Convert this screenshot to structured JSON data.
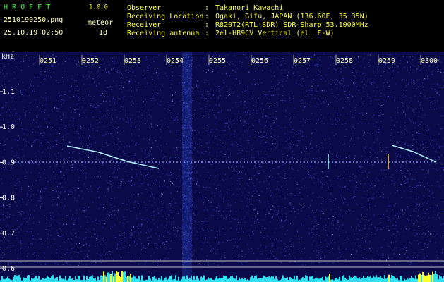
{
  "header": {
    "app": "H R O F F T",
    "version": "1.0.0",
    "file": "2510190250.png",
    "meteor_label": "meteor",
    "datetime": "25.10.19 02:50",
    "meteor_count": "18"
  },
  "separator": ":",
  "info": [
    {
      "label": "Observer",
      "value": "Takanori Kawachi"
    },
    {
      "label": "Receiving Location",
      "value": "Ogaki, Gifu, JAPAN (136.60E, 35.35N)"
    },
    {
      "label": "Receiver",
      "value": "R820T2(RTL-SDR) SDR-Sharp 53.1000MHz"
    },
    {
      "label": "Receiving antenna",
      "value": "2el-HB9CV Vertical (el. E-W)"
    }
  ],
  "y_axis": {
    "unit": "kHz",
    "labels": [
      "1.1",
      "1.0",
      "0.9",
      "0.8",
      "0.7",
      "0.6"
    ]
  },
  "time_labels": [
    "0251",
    "0252",
    "0253",
    "0254",
    "0255",
    "0256",
    "0257",
    "0258",
    "0259",
    "0300"
  ]
}
